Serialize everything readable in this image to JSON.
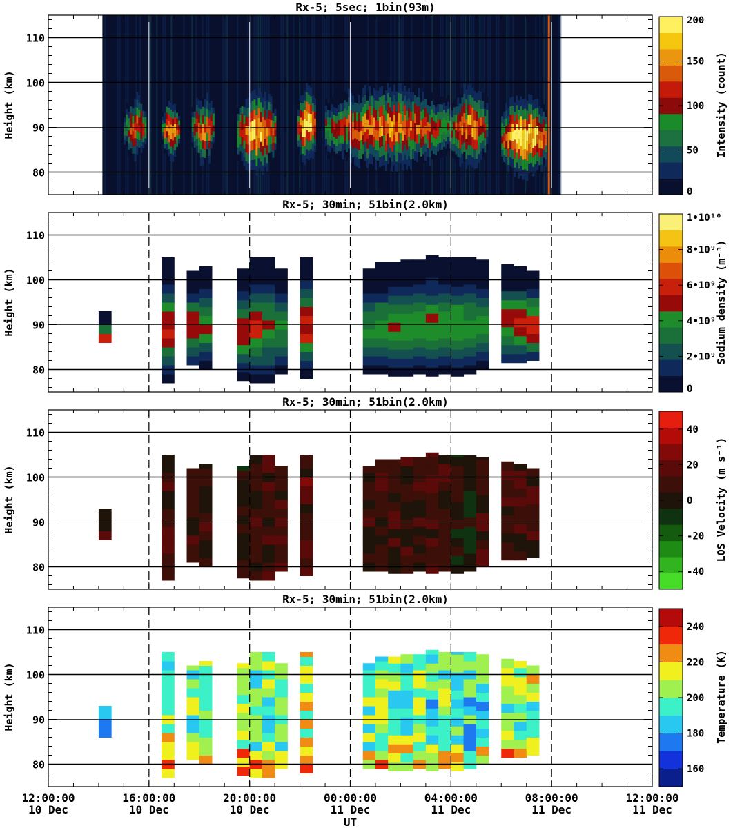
{
  "figure": {
    "xlabel": "UT",
    "x_ticks": [
      {
        "time": "12:00:00",
        "date": "10 Dec"
      },
      {
        "time": "16:00:00",
        "date": "10 Dec"
      },
      {
        "time": "20:00:00",
        "date": "10 Dec"
      },
      {
        "time": "00:00:00",
        "date": "11 Dec"
      },
      {
        "time": "04:00:00",
        "date": "11 Dec"
      },
      {
        "time": "08:00:00",
        "date": "11 Dec"
      },
      {
        "time": "12:00:00",
        "date": "11 Dec"
      }
    ],
    "colors": {
      "intensity": [
        "#08102e",
        "#0f2a5a",
        "#124a5a",
        "#1d7040",
        "#1a8a2a",
        "#8c0a0a",
        "#c41a0a",
        "#d85a0a",
        "#eb960f",
        "#f5c80f",
        "#fff060"
      ],
      "density": [
        "#0a1030",
        "#0f2a5a",
        "#145050",
        "#1a7038",
        "#1e8c2a",
        "#960a0a",
        "#c8200a",
        "#dc500a",
        "#eb8c0a",
        "#f5c314",
        "#faf078"
      ],
      "velocity": [
        "#46dc28",
        "#32b41e",
        "#1e8c14",
        "#145a0f",
        "#0f3210",
        "#1e140a",
        "#3c0f08",
        "#5a0a08",
        "#820a08",
        "#b40a08",
        "#e61e0f"
      ],
      "temperature": [
        "#0a1e8c",
        "#1432dc",
        "#1e78f0",
        "#28c8f0",
        "#3cf0c8",
        "#a0f050",
        "#f0f01e",
        "#f08c14",
        "#f0280a",
        "#b40a0a"
      ]
    }
  },
  "chart_data": [
    {
      "type": "heatmap",
      "title": "Rx-5;  5sec; 1bin(93m)",
      "xlabel": "UT",
      "ylabel": "Height (km)",
      "xlim_hours": [
        0,
        24
      ],
      "ylim": [
        75,
        115
      ],
      "y_ticks": [
        80,
        90,
        100,
        110
      ],
      "colorbar": {
        "label": "Intensity (count)",
        "ticks": [
          "0",
          "50",
          "100",
          "150",
          "200"
        ],
        "range": [
          0,
          200
        ]
      },
      "data_extent_hours": [
        2.15,
        20.35
      ],
      "layers": [
        {
          "t0": 3.0,
          "t1": 3.9,
          "h0": 83,
          "h1": 97,
          "peak": 130
        },
        {
          "t0": 4.5,
          "t1": 5.2,
          "h0": 83,
          "h1": 96,
          "peak": 170
        },
        {
          "t0": 5.7,
          "t1": 6.6,
          "h0": 82,
          "h1": 97,
          "peak": 150
        },
        {
          "t0": 7.5,
          "t1": 9.0,
          "h0": 80,
          "h1": 98,
          "peak": 180
        },
        {
          "t0": 9.9,
          "t1": 10.6,
          "h0": 82,
          "h1": 99,
          "peak": 200
        },
        {
          "t0": 11.0,
          "t1": 16.0,
          "h0": 81,
          "h1": 99,
          "peak": 150
        },
        {
          "t0": 16.0,
          "t1": 17.4,
          "h0": 81,
          "h1": 99,
          "peak": 160
        },
        {
          "t0": 18.0,
          "t1": 19.8,
          "h0": 79,
          "h1": 97,
          "peak": 200
        }
      ]
    },
    {
      "type": "heatmap",
      "title": "Rx-5; 30min; 51bin(2.0km)",
      "ylabel": "Height (km)",
      "ylim": [
        75,
        115
      ],
      "y_ticks": [
        80,
        90,
        100,
        110
      ],
      "colorbar": {
        "label": "Sodium density (m⁻³)",
        "ticks": [
          "0",
          "2•10⁹",
          "4•10⁹",
          "6•10⁹",
          "8•10⁹",
          "1•10¹⁰"
        ],
        "range": [
          0,
          10
        ]
      },
      "columns": [
        {
          "t": 2.25,
          "h0": 86,
          "h1": 93,
          "peak": 6.5
        },
        {
          "t": 4.75,
          "h0": 77,
          "h1": 105,
          "peak": 6.0
        },
        {
          "t": 5.75,
          "h0": 81,
          "h1": 102,
          "peak": 5.5
        },
        {
          "t": 6.25,
          "h0": 80,
          "h1": 103,
          "peak": 4.5
        },
        {
          "t": 7.75,
          "h0": 77.5,
          "h1": 102.5,
          "peak": 5.0
        },
        {
          "t": 8.25,
          "h0": 77,
          "h1": 105,
          "peak": 5.5
        },
        {
          "t": 8.75,
          "h0": 77,
          "h1": 105,
          "peak": 4.5
        },
        {
          "t": 9.25,
          "h0": 79,
          "h1": 102.5,
          "peak": 4.0
        },
        {
          "t": 10.25,
          "h0": 78,
          "h1": 105,
          "peak": 6.0
        },
        {
          "t": 12.75,
          "h0": 79,
          "h1": 102.5,
          "peak": 4.0
        },
        {
          "t": 13.25,
          "h0": 79,
          "h1": 104,
          "peak": 4.2
        },
        {
          "t": 13.75,
          "h0": 78.5,
          "h1": 104,
          "peak": 4.2
        },
        {
          "t": 14.25,
          "h0": 78.5,
          "h1": 104.5,
          "peak": 4.3
        },
        {
          "t": 14.75,
          "h0": 79,
          "h1": 104.5,
          "peak": 4.3
        },
        {
          "t": 15.25,
          "h0": 78.5,
          "h1": 105.5,
          "peak": 4.5
        },
        {
          "t": 15.75,
          "h0": 79,
          "h1": 105,
          "peak": 4.5
        },
        {
          "t": 16.25,
          "h0": 78.5,
          "h1": 105,
          "peak": 4.4
        },
        {
          "t": 16.75,
          "h0": 79,
          "h1": 105,
          "peak": 4.3
        },
        {
          "t": 17.25,
          "h0": 80,
          "h1": 104.5,
          "peak": 4.2
        },
        {
          "t": 18.25,
          "h0": 81.5,
          "h1": 103.5,
          "peak": 5.5
        },
        {
          "t": 18.75,
          "h0": 81.5,
          "h1": 103,
          "peak": 6.0
        },
        {
          "t": 19.25,
          "h0": 82,
          "h1": 102,
          "peak": 6.5
        }
      ]
    },
    {
      "type": "heatmap",
      "title": "Rx-5; 30min; 51bin(2.0km)",
      "ylabel": "Height (km)",
      "ylim": [
        75,
        115
      ],
      "y_ticks": [
        80,
        90,
        100,
        110
      ],
      "colorbar": {
        "label": "LOS Velocity (m s⁻¹)",
        "ticks": [
          "-40",
          "-20",
          "0",
          "20",
          "40"
        ],
        "range": [
          -50,
          50
        ]
      },
      "columns": [
        {
          "t": 2.25,
          "h0": 86,
          "h1": 93,
          "mean": 10
        },
        {
          "t": 4.75,
          "h0": 77,
          "h1": 105,
          "mean": 8
        },
        {
          "t": 5.75,
          "h0": 81,
          "h1": 102,
          "mean": 6
        },
        {
          "t": 6.25,
          "h0": 80,
          "h1": 103,
          "mean": 8
        },
        {
          "t": 7.75,
          "h0": 77.5,
          "h1": 102.5,
          "mean": 2
        },
        {
          "t": 8.25,
          "h0": 77,
          "h1": 105,
          "mean": 6
        },
        {
          "t": 8.75,
          "h0": 77,
          "h1": 105,
          "mean": 8
        },
        {
          "t": 9.25,
          "h0": 79,
          "h1": 102.5,
          "mean": 10
        },
        {
          "t": 10.25,
          "h0": 78,
          "h1": 105,
          "mean": 12
        },
        {
          "t": 12.75,
          "h0": 79,
          "h1": 102.5,
          "mean": 6
        },
        {
          "t": 13.25,
          "h0": 79,
          "h1": 104,
          "mean": 10
        },
        {
          "t": 13.75,
          "h0": 78.5,
          "h1": 104,
          "mean": 8
        },
        {
          "t": 14.25,
          "h0": 78.5,
          "h1": 104.5,
          "mean": 6
        },
        {
          "t": 14.75,
          "h0": 79,
          "h1": 104.5,
          "mean": 10
        },
        {
          "t": 15.25,
          "h0": 78.5,
          "h1": 105.5,
          "mean": 12
        },
        {
          "t": 15.75,
          "h0": 79,
          "h1": 105,
          "mean": 8
        },
        {
          "t": 16.25,
          "h0": 78.5,
          "h1": 105,
          "mean": 2
        },
        {
          "t": 16.75,
          "h0": 79,
          "h1": 105,
          "mean": 0
        },
        {
          "t": 17.25,
          "h0": 80,
          "h1": 104.5,
          "mean": 6
        },
        {
          "t": 18.25,
          "h0": 81.5,
          "h1": 103.5,
          "mean": 10
        },
        {
          "t": 18.75,
          "h0": 81.5,
          "h1": 103,
          "mean": 8
        },
        {
          "t": 19.25,
          "h0": 82,
          "h1": 102,
          "mean": 6
        }
      ]
    },
    {
      "type": "heatmap",
      "title": "Rx-5; 30min; 51bin(2.0km)",
      "ylabel": "Height (km)",
      "ylim": [
        75,
        115
      ],
      "y_ticks": [
        80,
        90,
        100,
        110
      ],
      "colorbar": {
        "label": "Temperature (K)",
        "ticks": [
          "160",
          "180",
          "200",
          "220",
          "240"
        ],
        "range": [
          150,
          250
        ]
      },
      "columns": [
        {
          "t": 2.25,
          "h0": 86,
          "h1": 93,
          "mean": 183
        },
        {
          "t": 4.75,
          "h0": 77,
          "h1": 105,
          "mean": 205
        },
        {
          "t": 5.75,
          "h0": 81,
          "h1": 102,
          "mean": 200
        },
        {
          "t": 6.25,
          "h0": 80,
          "h1": 103,
          "mean": 195
        },
        {
          "t": 7.75,
          "h0": 77.5,
          "h1": 102.5,
          "mean": 205
        },
        {
          "t": 8.25,
          "h0": 77,
          "h1": 105,
          "mean": 200
        },
        {
          "t": 8.75,
          "h0": 77,
          "h1": 105,
          "mean": 198
        },
        {
          "t": 9.25,
          "h0": 79,
          "h1": 102.5,
          "mean": 195
        },
        {
          "t": 10.25,
          "h0": 78,
          "h1": 105,
          "mean": 210
        },
        {
          "t": 12.75,
          "h0": 79,
          "h1": 102.5,
          "mean": 198
        },
        {
          "t": 13.25,
          "h0": 79,
          "h1": 104,
          "mean": 200
        },
        {
          "t": 13.75,
          "h0": 78.5,
          "h1": 104,
          "mean": 200
        },
        {
          "t": 14.25,
          "h0": 78.5,
          "h1": 104.5,
          "mean": 198
        },
        {
          "t": 14.75,
          "h0": 79,
          "h1": 104.5,
          "mean": 200
        },
        {
          "t": 15.25,
          "h0": 78.5,
          "h1": 105.5,
          "mean": 195
        },
        {
          "t": 15.75,
          "h0": 79,
          "h1": 105,
          "mean": 198
        },
        {
          "t": 16.25,
          "h0": 78.5,
          "h1": 105,
          "mean": 195
        },
        {
          "t": 16.75,
          "h0": 79,
          "h1": 105,
          "mean": 192
        },
        {
          "t": 17.25,
          "h0": 80,
          "h1": 104.5,
          "mean": 195
        },
        {
          "t": 18.25,
          "h0": 81.5,
          "h1": 103.5,
          "mean": 205
        },
        {
          "t": 18.75,
          "h0": 81.5,
          "h1": 103,
          "mean": 198
        },
        {
          "t": 19.25,
          "h0": 82,
          "h1": 102,
          "mean": 205
        }
      ]
    }
  ]
}
